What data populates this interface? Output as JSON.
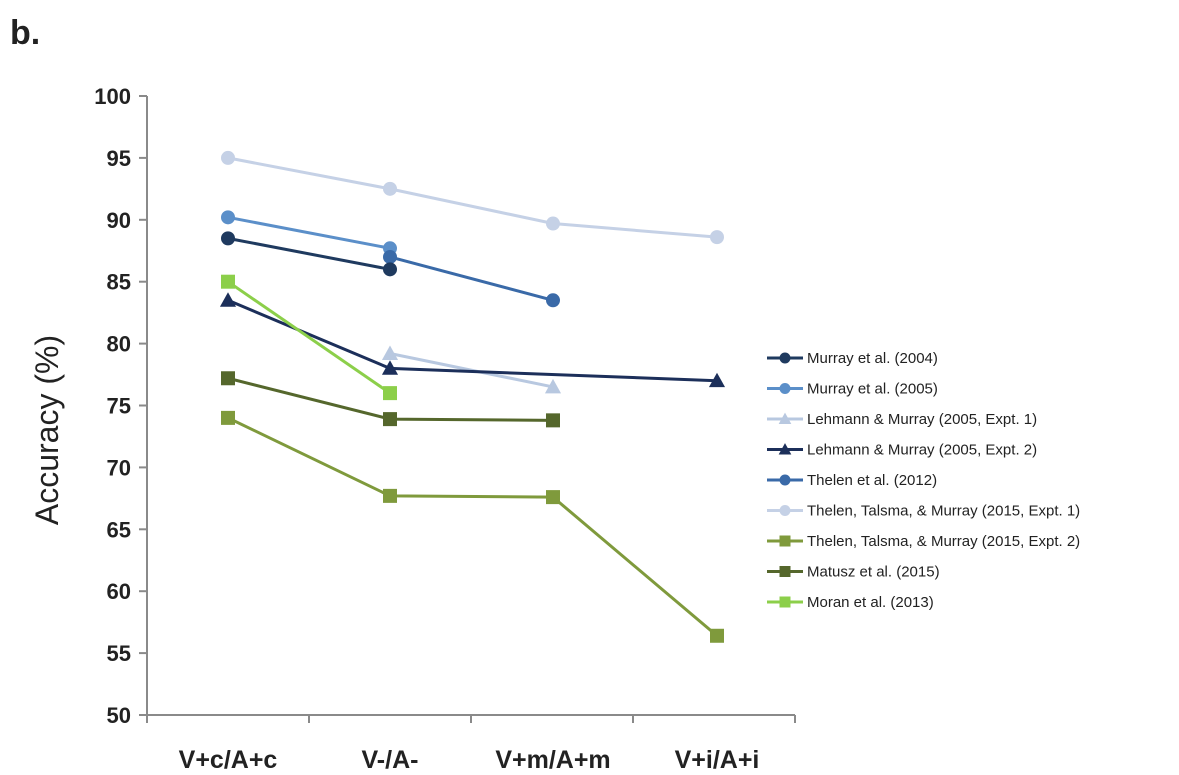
{
  "panel_label": "b.",
  "chart_data": {
    "type": "line",
    "title": "",
    "xlabel": "",
    "ylabel": "Accuracy (%)",
    "ylim": [
      50,
      100
    ],
    "yticks": [
      50,
      55,
      60,
      65,
      70,
      75,
      80,
      85,
      90,
      95,
      100
    ],
    "categories": [
      "V+c/A+c",
      "V-/A-",
      "V+m/A+m",
      "V+i/A+i"
    ],
    "grid": false,
    "legend_position": "right",
    "series": [
      {
        "name": "Murray et al. (2004)",
        "values": [
          88.5,
          86.0,
          null,
          null
        ],
        "color": "#1f3a5f",
        "marker": "circle"
      },
      {
        "name": "Murray et al. (2005)",
        "values": [
          90.2,
          87.7,
          null,
          null
        ],
        "color": "#5b8fc9",
        "marker": "circle"
      },
      {
        "name": "Lehmann & Murray (2005, Expt. 1)",
        "values": [
          null,
          79.2,
          76.5,
          null
        ],
        "color": "#b8c8e0",
        "marker": "triangle"
      },
      {
        "name": "Lehmann & Murray (2005, Expt. 2)",
        "values": [
          83.5,
          78.0,
          null,
          77.0
        ],
        "color": "#1c2f5a",
        "marker": "triangle"
      },
      {
        "name": "Thelen et al. (2012)",
        "values": [
          null,
          87.0,
          83.5,
          null
        ],
        "color": "#3a6aa8",
        "marker": "circle"
      },
      {
        "name": "Thelen, Talsma, & Murray (2015, Expt. 1)",
        "values": [
          95.0,
          92.5,
          89.7,
          88.6
        ],
        "color": "#c5d1e6",
        "marker": "circle"
      },
      {
        "name": "Thelen, Talsma, & Murray (2015, Expt. 2)",
        "values": [
          74.0,
          67.7,
          67.6,
          56.4
        ],
        "color": "#7f9a3c",
        "marker": "square"
      },
      {
        "name": "Matusz et al. (2015)",
        "values": [
          77.2,
          73.9,
          73.8,
          null
        ],
        "color": "#55672c",
        "marker": "square"
      },
      {
        "name": "Moran et al. (2013)",
        "values": [
          85.0,
          76.0,
          null,
          null
        ],
        "color": "#8ccf4a",
        "marker": "square"
      }
    ]
  }
}
